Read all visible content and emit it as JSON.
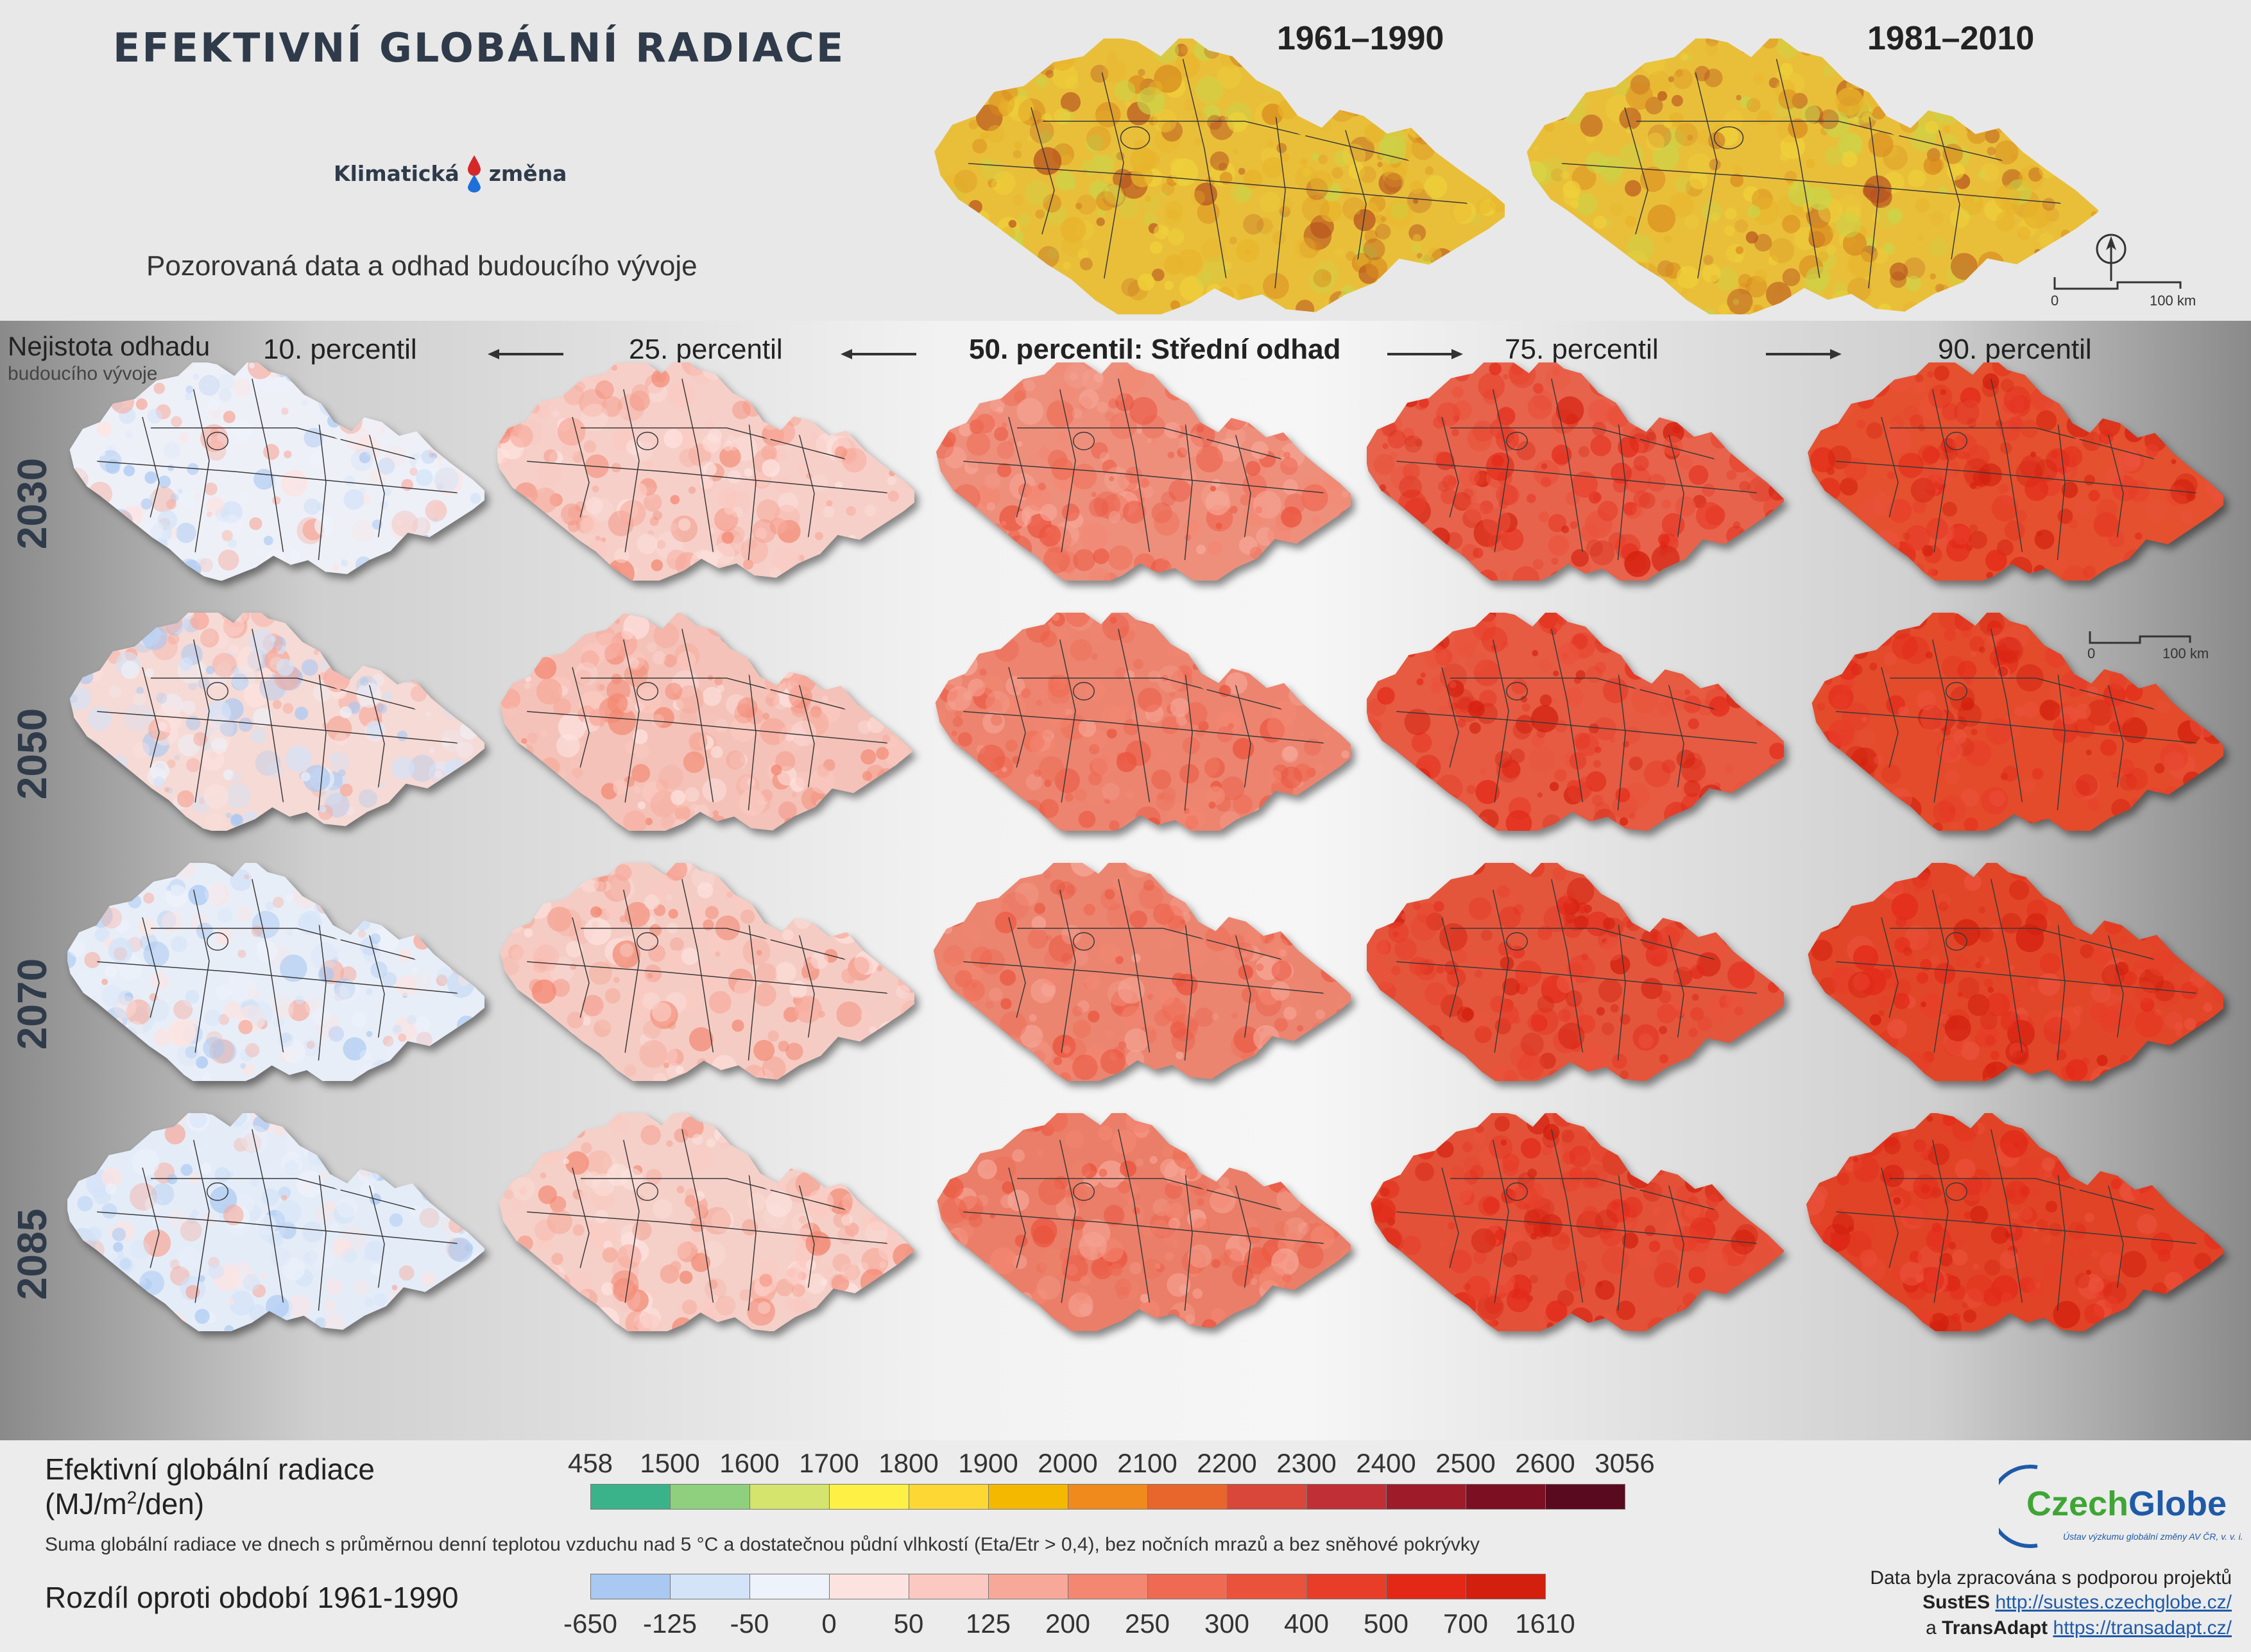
{
  "header": {
    "title": "EFEKTIVNÍ GLOBÁLNÍ RADIACE",
    "logo": {
      "left_word": "Klimatická",
      "right_word": "změna"
    },
    "subtitle": "Pozorovaná data a odhad budoucího vývoje",
    "periods": [
      "1961–1990",
      "1981–2010"
    ]
  },
  "scalebar": {
    "start": "0",
    "end": "100 km"
  },
  "grid": {
    "uncertainty_title": "Nejistota odhadu",
    "uncertainty_subtitle": "budoucího vývoje",
    "percentiles": [
      "10. percentil",
      "25. percentil",
      "50. percentil: Střední odhad",
      "75. percentil",
      "90. percentil"
    ],
    "years": [
      "2030",
      "2050",
      "2070",
      "2085"
    ]
  },
  "legend": {
    "title": "Efektivní globální radiace",
    "unit_prefix": "(MJ/m",
    "unit_sup": "2",
    "unit_suffix": "/den)",
    "description": "Suma globální radiace ve dnech s průměrnou denní teplotou vzduchu nad 5 °C a dostatečnou půdní vlhkostí (Eta/Etr > 0,4), bez nočních mrazů a bez sněhové pokrývky",
    "abs_ticks": [
      "458",
      "1500",
      "1600",
      "1700",
      "1800",
      "1900",
      "2000",
      "2100",
      "2200",
      "2300",
      "2400",
      "2500",
      "2600",
      "3056"
    ],
    "abs_colors": [
      "#3bb38a",
      "#8fd07e",
      "#d4e46c",
      "#fff046",
      "#fdd835",
      "#f5b800",
      "#f08a1c",
      "#e8652c",
      "#d8473a",
      "#c02f35",
      "#9e1b2a",
      "#7d0f22",
      "#5a0a1e"
    ],
    "diff_title": "Rozdíl oproti období 1961-1990",
    "diff_ticks": [
      "-650",
      "-125",
      "-50",
      "0",
      "50",
      "125",
      "200",
      "250",
      "300",
      "400",
      "500",
      "700",
      "1610"
    ],
    "diff_colors": [
      "#a9c8f2",
      "#d3e3f8",
      "#eef2fb",
      "#fde3e0",
      "#fbc9c1",
      "#f7a899",
      "#f38771",
      "#ef6a53",
      "#eb523c",
      "#e73d29",
      "#e32818",
      "#d21f0e"
    ]
  },
  "credits": {
    "org_name_a": "Czech",
    "org_name_b": "Globe",
    "org_sub": "Ústav výzkumu globální změny AV ČR, v. v. i.",
    "line1": "Data byla zpracována s podporou projektů",
    "project1": "SustES",
    "url1": "http://sustes.czechglobe.cz/",
    "conj": "a",
    "project2": "TransAdapt",
    "url2": "https://transadapt.cz/"
  },
  "map_data": {
    "historical_palette": [
      "#e8b32a",
      "#d98a1e",
      "#f0d23a",
      "#c8d64a",
      "#b7521f"
    ],
    "grid_base_colors": [
      [
        "#eef0f8",
        "#f6cfc8",
        "#ee8f7c",
        "#e8634b",
        "#e5502e"
      ],
      [
        "#f5dad6",
        "#f4c2b8",
        "#ec846f",
        "#e65b42",
        "#e34b2b"
      ],
      [
        "#e8eef8",
        "#f5ccc4",
        "#eb8570",
        "#e4563c",
        "#e24628"
      ],
      [
        "#e4ecf8",
        "#f5d0c8",
        "#ea7e68",
        "#e35238",
        "#e14326"
      ]
    ]
  }
}
